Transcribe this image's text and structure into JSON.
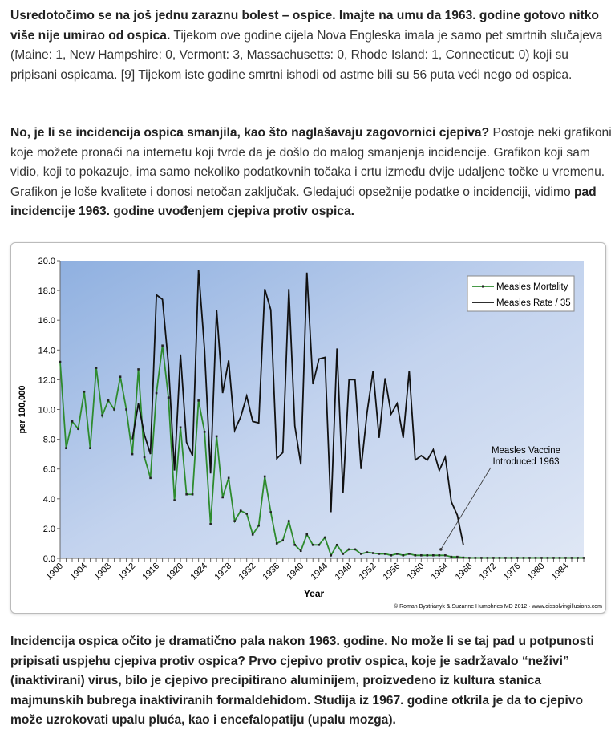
{
  "p1": {
    "bold": "Usredotočimo se na još jednu zaraznu bolest – ospice. Imajte na umu da 1963. godine gotovo nitko više nije umirao od ospica.",
    "text": " Tijekom ove godine cijela Nova Engleska imala je samo pet smrtnih slučajeva (Maine: 1, New Hampshire: 0, Vermont: 3, Massachusetts: 0, Rhode Island: 1, Connecticut: 0) koji su pripisani ospicama. [9] Tijekom iste godine smrtni ishodi od astme bili su 56 puta veći nego od ospica."
  },
  "p2": {
    "bold": "No, je li se incidencija ospica smanjila, kao što naglašavaju zagovornici cjepiva?",
    "text": " Postoje neki grafikoni koje možete pronaći na internetu koji tvrde da je došlo do malog smanjenja incidencije. Grafikon koji sam vidio, koji to pokazuje, ima samo nekoliko podatkovnih točaka i crtu između dvije udaljene točke u vremenu. Grafikon je loše kvalitete i donosi netočan zaključak. Gledajući opsežnije podatke o incidenciji, vidimo ",
    "bold2": "pad incidencije 1963. godine uvođenjem cjepiva protiv ospica."
  },
  "p3": {
    "bold": "Incidencija ospica očito je dramatično pala nakon 1963. godine. No može li se taj pad u potpunosti pripisati uspjehu cjepiva protiv ospica? Prvo cjepivo protiv ospica, koje je sadržavalo “neživi” (inaktivirani) virus, bilo je cjepivo precipitirano aluminijem, proizvedeno iz kultura stanica majmunskih bubrega inaktiviranih formaldehidom. Studija iz 1967. godine otkrila je da to cjepivo može uzrokovati upalu pluća, kao i encefalopatiju (upalu mozga)."
  },
  "chart_data": {
    "type": "line",
    "xlabel": "Year",
    "ylabel": "per 100,000",
    "ylim": [
      0,
      20
    ],
    "xlim": [
      1900,
      1987
    ],
    "yticks": [
      "0.0",
      "2.0",
      "4.0",
      "6.0",
      "8.0",
      "10.0",
      "12.0",
      "14.0",
      "16.0",
      "18.0",
      "20.0"
    ],
    "xticks": [
      "1900",
      "1904",
      "1908",
      "1912",
      "1916",
      "1920",
      "1924",
      "1928",
      "1932",
      "1936",
      "1940",
      "1944",
      "1948",
      "1952",
      "1956",
      "1960",
      "1964",
      "1968",
      "1972",
      "1976",
      "1980",
      "1984"
    ],
    "legend_position": "top-right",
    "annotation": "Measles Vaccine Introduced 1963",
    "annotation_lines": [
      "Measles Vaccine",
      "Introduced 1963"
    ],
    "annotation_year": 1963,
    "credit": "© Roman Bystrianyk & Suzanne Humphries MD 2012 · www.dissolvingillusions.com",
    "series": [
      {
        "name": "Measles Mortality",
        "color": "#2e8b2e",
        "x_start": 1900,
        "values": [
          13.2,
          7.4,
          9.2,
          8.7,
          11.2,
          7.4,
          12.8,
          9.6,
          10.6,
          10.0,
          12.2,
          10.0,
          7.0,
          12.7,
          6.8,
          5.4,
          11.1,
          14.3,
          10.8,
          3.9,
          8.8,
          4.3,
          4.3,
          10.6,
          8.5,
          2.3,
          8.2,
          4.1,
          5.4,
          2.5,
          3.2,
          3.0,
          1.6,
          2.2,
          5.5,
          3.1,
          1.0,
          1.2,
          2.5,
          0.9,
          0.5,
          1.6,
          0.9,
          0.9,
          1.4,
          0.2,
          0.9,
          0.3,
          0.6,
          0.6,
          0.3,
          0.4,
          0.35,
          0.3,
          0.3,
          0.2,
          0.3,
          0.2,
          0.3,
          0.2,
          0.2,
          0.2,
          0.2,
          0.2,
          0.2,
          0.1,
          0.1,
          0.05,
          0.03,
          0.03,
          0.03,
          0.03,
          0.03,
          0.03,
          0.03,
          0.03,
          0.03,
          0.03,
          0.03,
          0.03,
          0.03,
          0.03,
          0.03,
          0.03,
          0.03,
          0.03,
          0.03,
          0.03
        ]
      },
      {
        "name": "Measles Rate / 35",
        "color": "#111111",
        "x_start": 1912,
        "values": [
          8.0,
          10.4,
          8.3,
          7.0,
          17.7,
          17.4,
          13.0,
          5.9,
          13.7,
          7.8,
          6.9,
          19.4,
          14.0,
          5.7,
          16.7,
          11.1,
          13.3,
          8.6,
          9.5,
          10.9,
          9.2,
          9.1,
          18.1,
          16.7,
          6.7,
          7.1,
          18.1,
          8.9,
          6.3,
          19.2,
          11.7,
          13.4,
          13.5,
          3.1,
          14.1,
          4.4,
          12.0,
          12.0,
          6.0,
          9.8,
          12.6,
          8.1,
          12.1,
          9.7,
          10.4,
          8.1,
          12.6,
          6.6,
          6.9,
          6.6,
          7.3,
          5.9,
          6.8,
          3.8,
          2.9,
          0.9
        ]
      }
    ]
  }
}
